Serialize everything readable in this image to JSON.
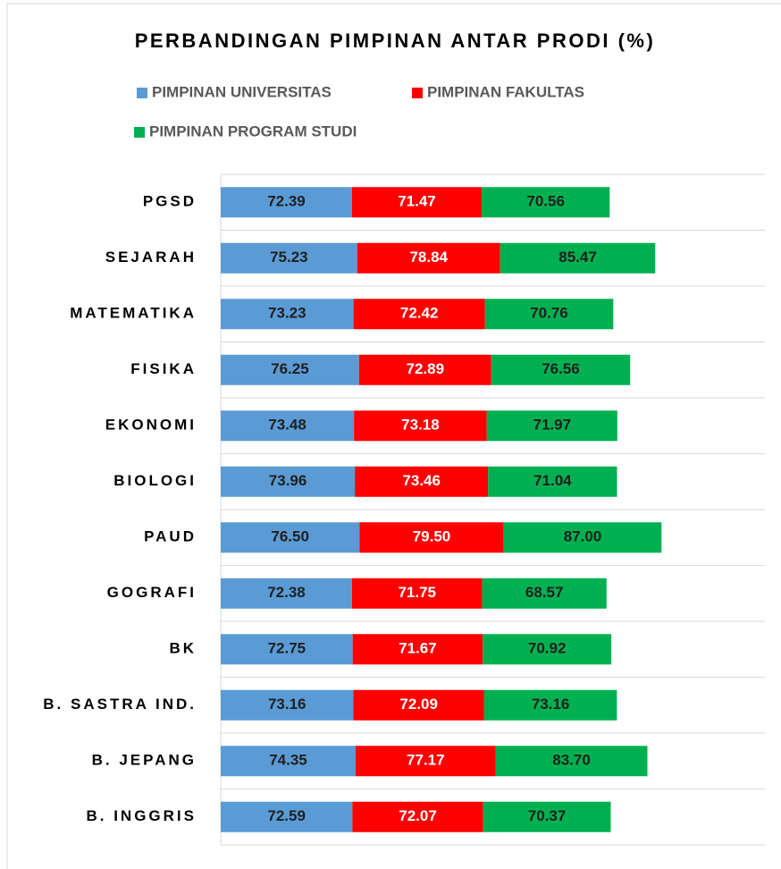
{
  "chart_data": {
    "type": "stacked_bar_horizontal",
    "title": "PERBANDINGAN PIMPINAN ANTAR PRODI (%)",
    "categories": [
      "PGSD",
      "SEJARAH",
      "MATEMATIKA",
      "FISIKA",
      "EKONOMI",
      "BIOLOGI",
      "PAUD",
      "GOGRAFI",
      "BK",
      "B. SASTRA IND.",
      "B. JEPANG",
      "B. INGGRIS"
    ],
    "series": [
      {
        "name": "PIMPINAN UNIVERSITAS",
        "color": "#5b9bd5",
        "values": [
          72.39,
          75.23,
          73.23,
          76.25,
          73.48,
          73.96,
          76.5,
          72.38,
          72.75,
          73.16,
          74.35,
          72.59
        ],
        "value_labels": [
          "72.39",
          "75.23",
          "73.23",
          "76.25",
          "73.48",
          "73.96",
          "76.50",
          "72.38",
          "72.75",
          "73.16",
          "74.35",
          "72.59"
        ]
      },
      {
        "name": "PIMPINAN FAKULTAS",
        "color": "#ff0000",
        "values": [
          71.47,
          78.84,
          72.42,
          72.89,
          73.18,
          73.46,
          79.5,
          71.75,
          71.67,
          72.09,
          77.17,
          72.07
        ],
        "value_labels": [
          "71.47",
          "78.84",
          "72.42",
          "72.89",
          "73.18",
          "73.46",
          "79.50",
          "71.75",
          "71.67",
          "72.09",
          "77.17",
          "72.07"
        ]
      },
      {
        "name": "PIMPINAN PROGRAM STUDI",
        "color": "#00b050",
        "values": [
          70.56,
          85.47,
          70.76,
          76.56,
          71.97,
          71.04,
          87.0,
          68.57,
          70.92,
          73.16,
          83.7,
          70.37
        ],
        "value_labels": [
          "70.56",
          "85.47",
          "70.76",
          "76.56",
          "71.97",
          "71.04",
          "87.00",
          "68.57",
          "70.92",
          "73.16",
          "83.70",
          "70.37"
        ]
      }
    ],
    "xlim": [
      0,
      300
    ]
  }
}
